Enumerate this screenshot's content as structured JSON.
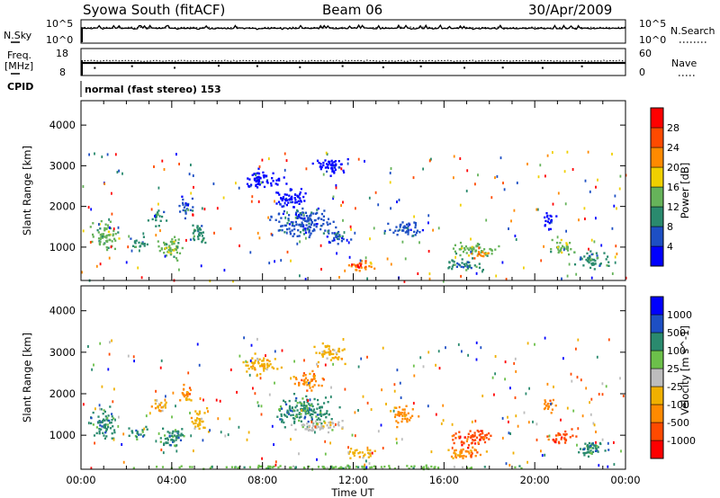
{
  "header": {
    "station": "Syowa South (fitACF)",
    "beam": "Beam 06",
    "date": "30/Apr/2009"
  },
  "param_panels": {
    "nsky_label": "N.Sky",
    "nsearch_label": "N.Search",
    "nsky_ticks": [
      "10^5",
      "10^0"
    ],
    "nsearch_ticks": [
      "10^5",
      "10^0"
    ],
    "freq_label_1": "Freq.",
    "freq_label_2": "[MHz]",
    "freq_ticks": [
      "18",
      "8"
    ],
    "nave_label": "Nave",
    "nave_ticks": [
      "60",
      "0"
    ],
    "cpid_label": "CPID",
    "cpid_text": "normal (fast stereo) 153"
  },
  "chart_data": [
    {
      "type": "heatmap",
      "name": "power",
      "ylabel": "Slant Range [km]",
      "y_ticks": [
        "1000",
        "2000",
        "3000",
        "4000"
      ],
      "ylim": [
        180,
        4600
      ],
      "colorbar_label": "Power [dB]",
      "colorbar_ticks": [
        "28",
        "24",
        "20",
        "16",
        "12",
        "8",
        "4"
      ],
      "colors": [
        "#0000ff",
        "#1d4fc4",
        "#2a8a6e",
        "#66b35a",
        "#f0d000",
        "#ff8a00",
        "#ff4a00",
        "#ff0000"
      ],
      "blobs": [
        {
          "t": 1.0,
          "r": 1300,
          "dt": 0.8,
          "dr": 500,
          "l": 3
        },
        {
          "t": 3.4,
          "r": 1750,
          "dt": 0.5,
          "dr": 250,
          "l": 2
        },
        {
          "t": 4.6,
          "r": 2000,
          "dt": 0.4,
          "dr": 350,
          "l": 1
        },
        {
          "t": 5.2,
          "r": 1350,
          "dt": 0.5,
          "dr": 400,
          "l": 2
        },
        {
          "t": 4.0,
          "r": 1000,
          "dt": 0.9,
          "dr": 350,
          "l": 3
        },
        {
          "t": 9.8,
          "r": 1600,
          "dt": 1.8,
          "dr": 500,
          "l": 1
        },
        {
          "t": 9.2,
          "r": 2200,
          "dt": 1.0,
          "dr": 350,
          "l": 0
        },
        {
          "t": 11.3,
          "r": 1300,
          "dt": 0.7,
          "dr": 250,
          "l": 1
        },
        {
          "t": 12.3,
          "r": 580,
          "dt": 0.9,
          "dr": 160,
          "l": 5
        },
        {
          "t": 12.1,
          "r": 580,
          "dt": 0.4,
          "dr": 80,
          "l": 7
        },
        {
          "t": 14.2,
          "r": 1500,
          "dt": 1.0,
          "dr": 300,
          "l": 1
        },
        {
          "t": 17.3,
          "r": 950,
          "dt": 1.3,
          "dr": 250,
          "l": 3
        },
        {
          "t": 17.6,
          "r": 850,
          "dt": 0.6,
          "dr": 120,
          "l": 5
        },
        {
          "t": 16.8,
          "r": 600,
          "dt": 1.2,
          "dr": 200,
          "l": 2
        },
        {
          "t": 21.2,
          "r": 1000,
          "dt": 0.8,
          "dr": 250,
          "l": 3
        },
        {
          "t": 20.6,
          "r": 1700,
          "dt": 0.4,
          "dr": 300,
          "l": 0
        },
        {
          "t": 22.5,
          "r": 700,
          "dt": 1.0,
          "dr": 300,
          "l": 2
        },
        {
          "t": 8.0,
          "r": 2700,
          "dt": 1.2,
          "dr": 300,
          "l": 0
        },
        {
          "t": 11.0,
          "r": 3000,
          "dt": 1.0,
          "dr": 300,
          "l": 0
        },
        {
          "t": 2.5,
          "r": 1100,
          "dt": 0.6,
          "dr": 200,
          "l": 2
        }
      ]
    },
    {
      "type": "heatmap",
      "name": "velocity",
      "xlabel": "Time UT",
      "x_ticks": [
        "00:00",
        "04:00",
        "08:00",
        "12:00",
        "16:00",
        "20:00",
        "00:00"
      ],
      "ylabel": "Slant Range [km]",
      "y_ticks": [
        "1000",
        "2000",
        "3000",
        "4000"
      ],
      "ylim": [
        180,
        4600
      ],
      "colorbar_label": "Velocity [m s^-1]",
      "colorbar_ticks": [
        "1000",
        "500",
        "100",
        "25",
        "-25",
        "-100",
        "-500",
        "-1000"
      ],
      "colors": [
        "#ff0000",
        "#ff4a00",
        "#ff8a00",
        "#f0b000",
        "#bdbdbd",
        "#6cc04a",
        "#2a8a6e",
        "#1d4fc4",
        "#0000ff"
      ],
      "blobs": [
        {
          "t": 1.0,
          "r": 1300,
          "dt": 0.8,
          "dr": 500,
          "l": 6
        },
        {
          "t": 3.4,
          "r": 1750,
          "dt": 0.5,
          "dr": 250,
          "l": 3
        },
        {
          "t": 4.6,
          "r": 2000,
          "dt": 0.4,
          "dr": 350,
          "l": 2
        },
        {
          "t": 5.2,
          "r": 1350,
          "dt": 0.5,
          "dr": 400,
          "l": 3
        },
        {
          "t": 4.0,
          "r": 1000,
          "dt": 0.9,
          "dr": 350,
          "l": 6
        },
        {
          "t": 9.8,
          "r": 1600,
          "dt": 1.8,
          "dr": 500,
          "l": 6
        },
        {
          "t": 10.4,
          "r": 1250,
          "dt": 1.8,
          "dr": 200,
          "l": 4
        },
        {
          "t": 10.0,
          "r": 2300,
          "dt": 0.9,
          "dr": 300,
          "l": 2
        },
        {
          "t": 12.3,
          "r": 580,
          "dt": 1.0,
          "dr": 160,
          "l": 3
        },
        {
          "t": 14.2,
          "r": 1500,
          "dt": 0.8,
          "dr": 300,
          "l": 2
        },
        {
          "t": 17.3,
          "r": 950,
          "dt": 1.4,
          "dr": 280,
          "l": 1
        },
        {
          "t": 16.8,
          "r": 600,
          "dt": 1.2,
          "dr": 200,
          "l": 2
        },
        {
          "t": 21.2,
          "r": 1000,
          "dt": 0.8,
          "dr": 250,
          "l": 1
        },
        {
          "t": 20.6,
          "r": 1700,
          "dt": 0.4,
          "dr": 300,
          "l": 2
        },
        {
          "t": 22.5,
          "r": 700,
          "dt": 1.0,
          "dr": 300,
          "l": 6
        },
        {
          "t": 8.0,
          "r": 2700,
          "dt": 1.2,
          "dr": 300,
          "l": 3
        },
        {
          "t": 11.0,
          "r": 3000,
          "dt": 1.0,
          "dr": 300,
          "l": 3
        },
        {
          "t": 12.0,
          "r": 250,
          "dt": 11.5,
          "dr": 60,
          "l": 5
        },
        {
          "t": 2.5,
          "r": 1100,
          "dt": 0.6,
          "dr": 200,
          "l": 6
        }
      ]
    }
  ]
}
